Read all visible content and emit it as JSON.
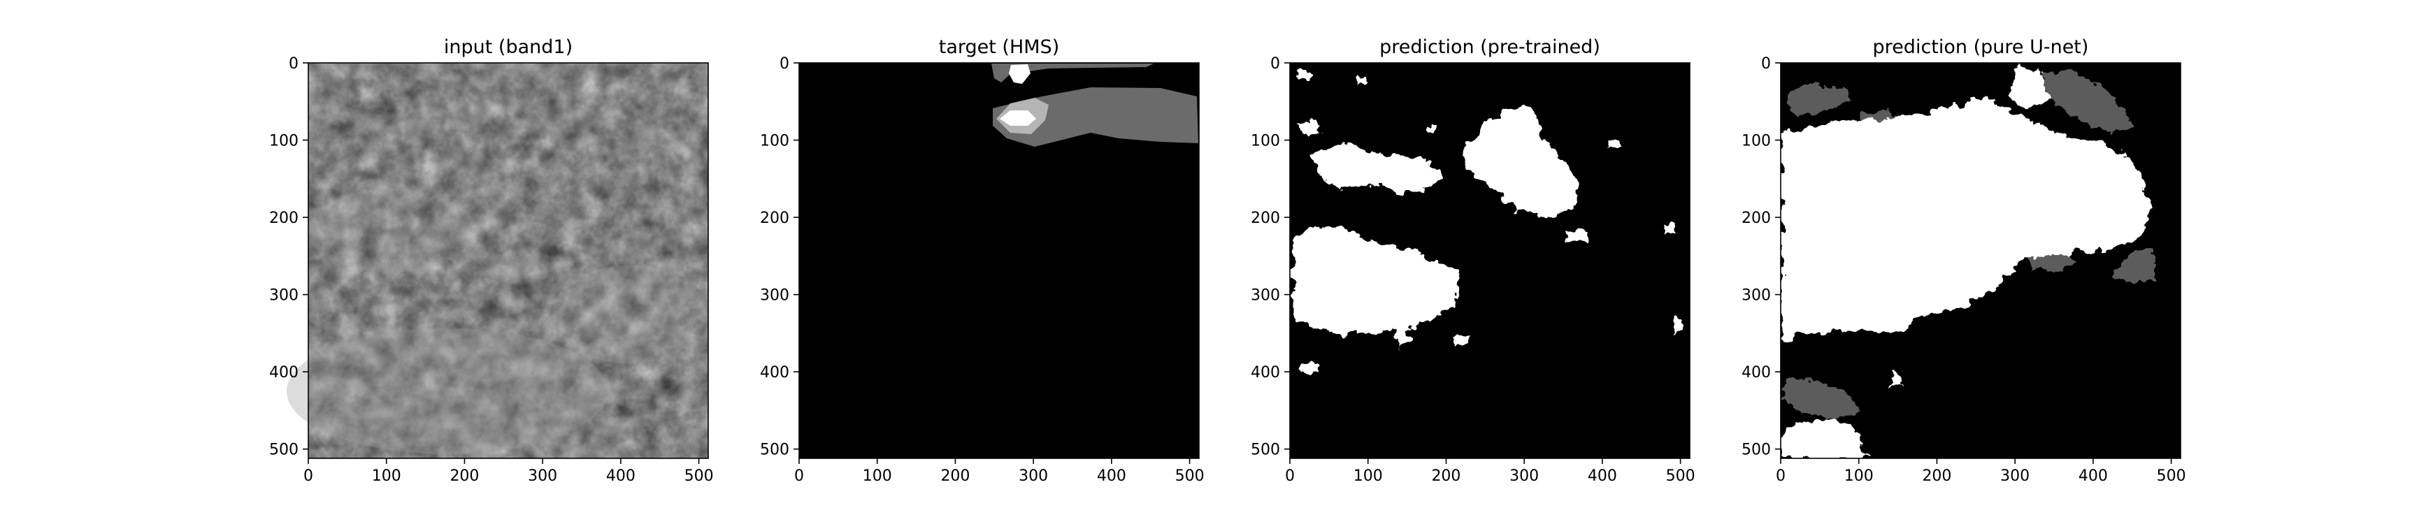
{
  "figure": {
    "panels": [
      {
        "id": "input",
        "title": "input (band1)",
        "x_ticks": [
          "0",
          "100",
          "200",
          "300",
          "400",
          "500"
        ],
        "y_ticks": [
          "0",
          "100",
          "200",
          "300",
          "400",
          "500"
        ],
        "content": "grayscale satellite image",
        "colors": {
          "base": "#3a3a3a",
          "light": "#8a8a8a",
          "dark": "#1e1e1e"
        }
      },
      {
        "id": "target",
        "title": "target (HMS)",
        "x_ticks": [
          "0",
          "100",
          "200",
          "300",
          "400",
          "500"
        ],
        "y_ticks": [
          "0",
          "100",
          "200",
          "300",
          "400",
          "500"
        ],
        "content": "smoke mask (3 levels)",
        "colors": {
          "background": "#000000",
          "low": "#6b6b6b",
          "medium": "#b5b5b5",
          "high": "#ffffff"
        }
      },
      {
        "id": "pred_pretrained",
        "title": "prediction (pre-trained)",
        "x_ticks": [
          "0",
          "100",
          "200",
          "300",
          "400",
          "500"
        ],
        "y_ticks": [
          "0",
          "100",
          "200",
          "300",
          "400",
          "500"
        ],
        "content": "predicted mask",
        "colors": {
          "background": "#000000",
          "smoke": "#ffffff"
        }
      },
      {
        "id": "pred_unet",
        "title": "prediction (pure U-net)",
        "x_ticks": [
          "0",
          "100",
          "200",
          "300",
          "400",
          "500"
        ],
        "y_ticks": [
          "0",
          "100",
          "200",
          "300",
          "400",
          "500"
        ],
        "content": "predicted mask",
        "colors": {
          "background": "#000000",
          "smoke": "#ffffff",
          "low": "#5c5c5c"
        }
      }
    ]
  }
}
